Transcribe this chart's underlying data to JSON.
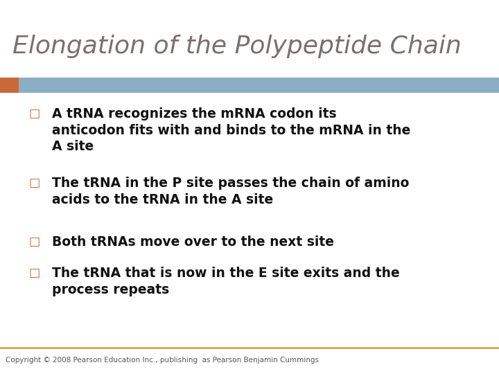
{
  "title": "Elongation of the Polypeptide Chain",
  "title_color": "#7a7070",
  "title_fontsize": 26,
  "title_style": "italic",
  "header_bar_color": "#8aafc5",
  "header_bar_left_accent_color": "#c8693a",
  "bullet_color": "#c8693a",
  "bullet_char": "□",
  "text_color": "#111111",
  "text_fontsize": 13.5,
  "background_color": "#ffffff",
  "footer_line_color": "#d4a843",
  "footer_text": "Copyright © 2008 Pearson Education Inc., publishing  as Pearson Benjamin Cummings",
  "footer_text_color": "#555555",
  "footer_fontsize": 7.5,
  "bullets": [
    "A tRNA recognizes the mRNA codon its\nanticodon fits with and binds to the mRNA in the\nA site",
    "The tRNA in the P site passes the chain of amino\nacids to the tRNA in the A site",
    "Both tRNAs move over to the next site",
    "The tRNA that is now in the E site exits and the\nprocess repeats"
  ]
}
